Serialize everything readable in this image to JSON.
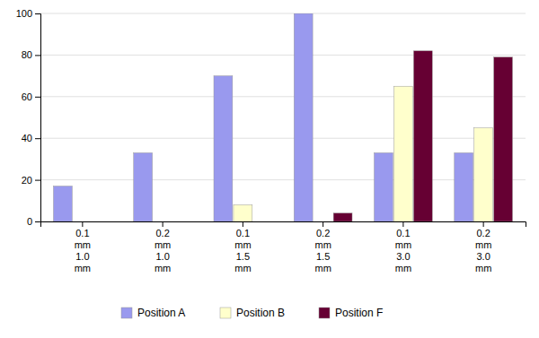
{
  "chart_data": {
    "type": "bar",
    "categories": [
      "0.1\nmm\n1.0\nmm",
      "0.2\nmm\n1.0\nmm",
      "0.1\nmm\n1.5\nmm",
      "0.2\nmm\n1.5\nmm",
      "0.1\nmm\n3.0\nmm",
      "0.2\nmm\n3.0\nmm"
    ],
    "series": [
      {
        "name": "Position A",
        "color": "#9999EE",
        "values": [
          17,
          33,
          70,
          100,
          33,
          33
        ]
      },
      {
        "name": "Position B",
        "color": "#FFFFCC",
        "values": [
          0,
          0,
          8,
          0,
          65,
          45
        ]
      },
      {
        "name": "Position F",
        "color": "#660033",
        "values": [
          0,
          0,
          0,
          4,
          82,
          79
        ]
      }
    ],
    "ylim": [
      0,
      100
    ],
    "yticks": [
      0,
      20,
      40,
      60,
      80,
      100
    ],
    "grid": true,
    "legend": "bottom"
  }
}
